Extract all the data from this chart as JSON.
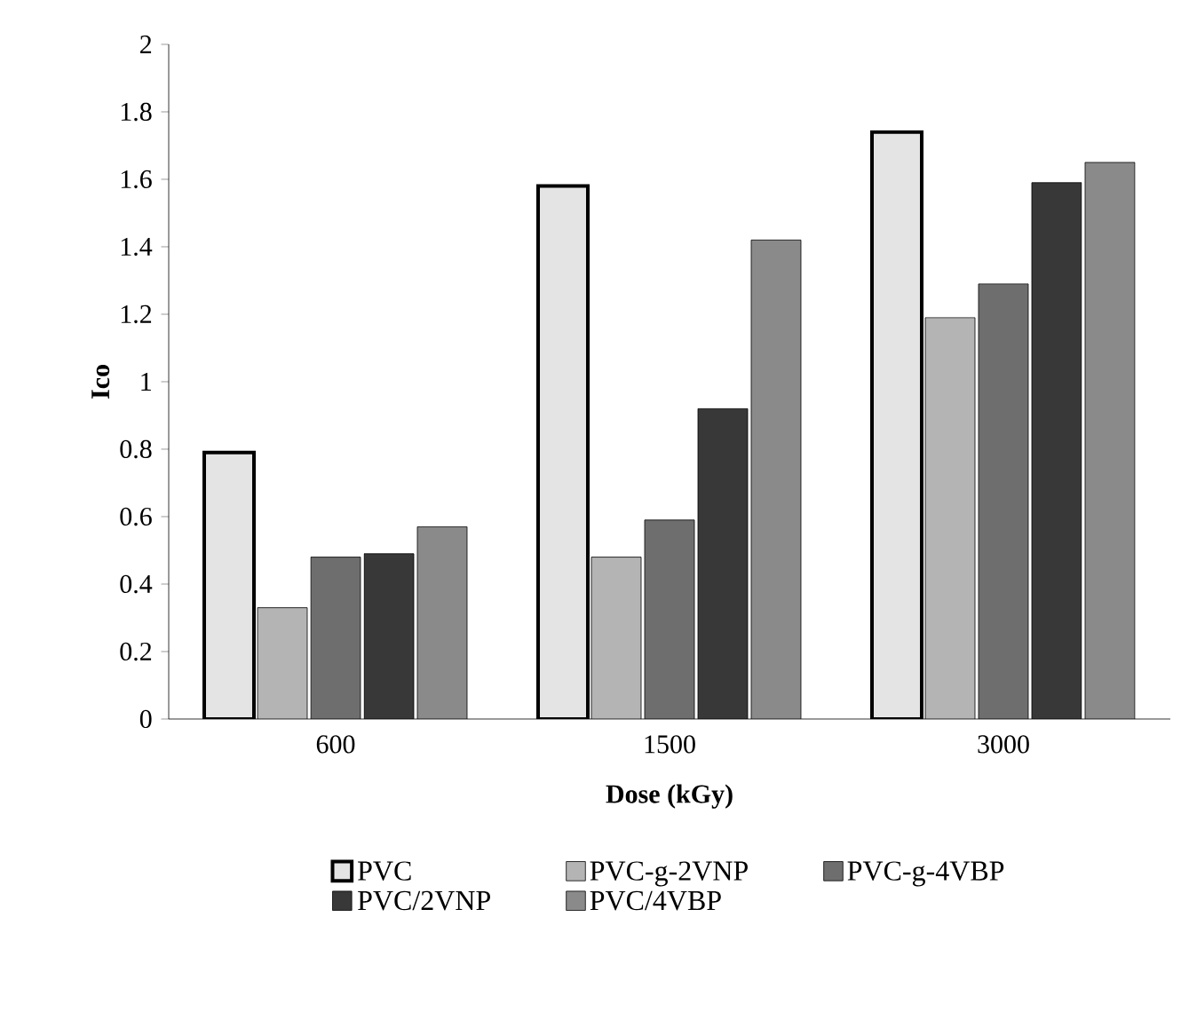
{
  "chart_data": {
    "type": "bar",
    "xlabel": "Dose (kGy)",
    "ylabel": "Ico",
    "categories": [
      "600",
      "1500",
      "3000"
    ],
    "series": [
      {
        "name": "PVC",
        "color": "#e4e4e4",
        "values": [
          0.79,
          1.58,
          1.74
        ]
      },
      {
        "name": "PVC-g-2VNP",
        "color": "#b4b4b4",
        "values": [
          0.33,
          0.48,
          1.19
        ]
      },
      {
        "name": "PVC-g-4VBP",
        "color": "#6e6e6e",
        "values": [
          0.48,
          0.59,
          1.29
        ]
      },
      {
        "name": "PVC/2VNP",
        "color": "#383838",
        "values": [
          0.49,
          0.92,
          1.59
        ]
      },
      {
        "name": "PVC/4VBP",
        "color": "#8a8a8a",
        "values": [
          0.57,
          1.42,
          1.65
        ]
      }
    ],
    "ylim": [
      0,
      2
    ],
    "yticks": [
      0,
      0.2,
      0.4,
      0.6,
      0.8,
      1,
      1.2,
      1.4,
      1.6,
      1.8,
      2
    ],
    "grid": false,
    "legend": "bottom"
  }
}
